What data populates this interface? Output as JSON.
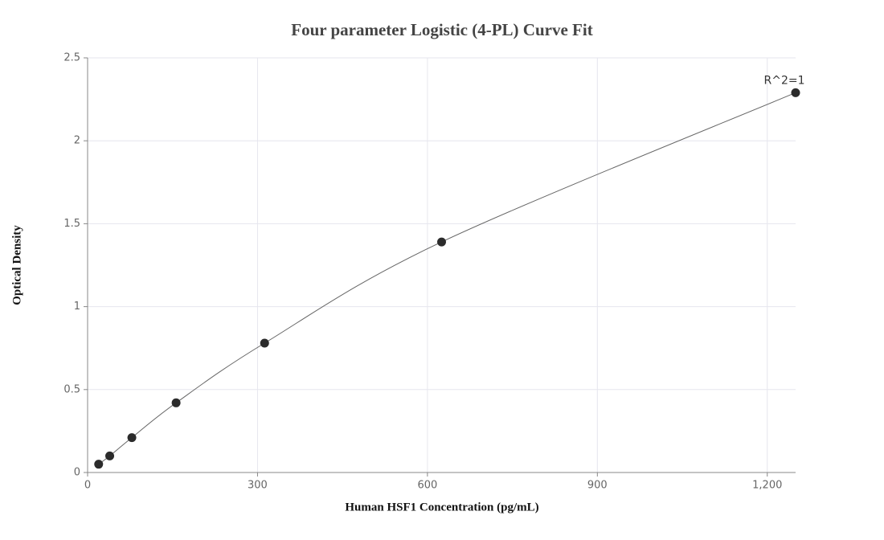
{
  "chart_data": {
    "type": "scatter",
    "title": "Four parameter Logistic (4-PL) Curve Fit",
    "x_label": "Human HSF1 Concentration (pg/mL)",
    "y_label": "Optical Density",
    "annotation": "R^2=1",
    "x": [
      19.53,
      39.06,
      78.13,
      156.25,
      312.5,
      625,
      1250
    ],
    "series": [
      {
        "color": "#2b2b2b",
        "values": [
          0.05,
          0.1,
          0.21,
          0.42,
          0.78,
          1.39,
          2.29
        ]
      }
    ],
    "fit_line": true,
    "xlim": [
      0,
      1250
    ],
    "xticks": [
      0,
      300,
      600,
      900,
      {
        "value": 1200,
        "label": "1,200"
      }
    ],
    "ylim": [
      0,
      2.5
    ],
    "yticks": [
      0,
      0.5,
      1,
      1.5,
      2,
      2.5
    ],
    "grid": true
  }
}
